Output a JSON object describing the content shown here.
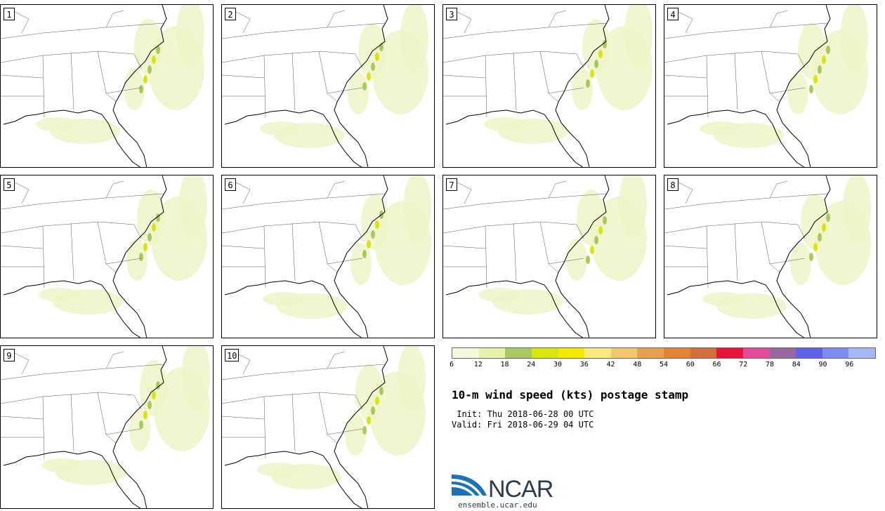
{
  "panels": [
    {
      "label": "1"
    },
    {
      "label": "2"
    },
    {
      "label": "3"
    },
    {
      "label": "4"
    },
    {
      "label": "5"
    },
    {
      "label": "6"
    },
    {
      "label": "7"
    },
    {
      "label": "8"
    },
    {
      "label": "9"
    },
    {
      "label": "10"
    }
  ],
  "colorbar": {
    "colors": [
      "#f4f8dc",
      "#e6f2a8",
      "#a8c860",
      "#d8e610",
      "#f6e800",
      "#fae87e",
      "#f2c86e",
      "#e8a04c",
      "#e48236",
      "#d2703c",
      "#e8143c",
      "#e04c98",
      "#9a68a0",
      "#6060e8",
      "#7c8cf0",
      "#a6b8f4"
    ],
    "ticks": [
      "6",
      "12",
      "18",
      "24",
      "30",
      "36",
      "42",
      "48",
      "54",
      "60",
      "66",
      "72",
      "78",
      "84",
      "90",
      "96"
    ]
  },
  "title": "10-m wind speed (kts) postage stamp",
  "init": " Init: Thu 2018-06-28 00 UTC",
  "valid": "Valid: Fri 2018-06-29 04 UTC",
  "logo": {
    "name": "NCAR",
    "url": "ensemble.ucar.edu"
  }
}
